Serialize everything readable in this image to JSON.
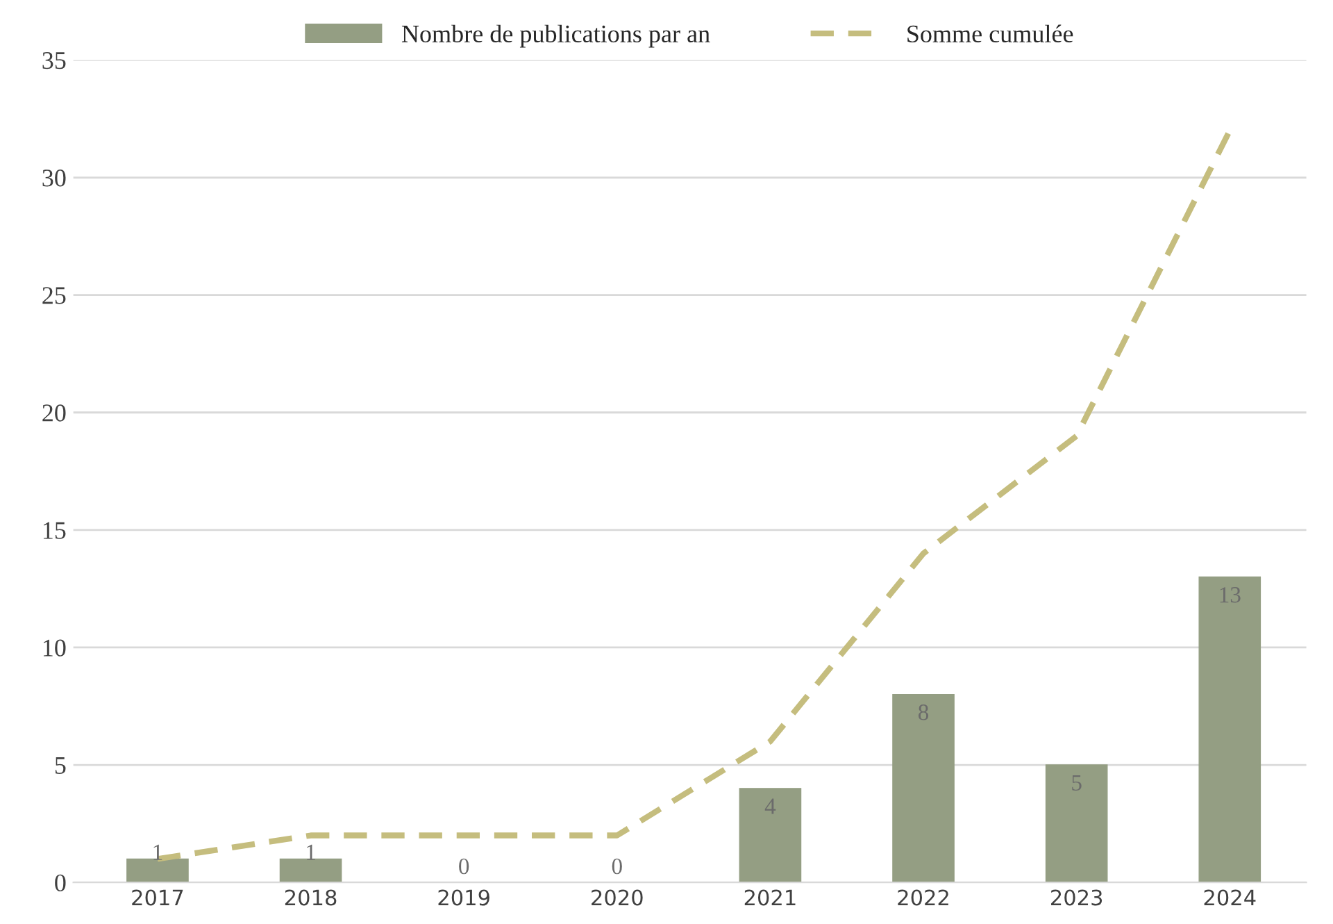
{
  "chart_data": {
    "type": "bar",
    "categories": [
      "2017",
      "2018",
      "2019",
      "2020",
      "2021",
      "2022",
      "2023",
      "2024"
    ],
    "series": [
      {
        "name": "Nombre de publications par an",
        "color": "#949e83",
        "values": [
          1,
          1,
          0,
          0,
          4,
          8,
          5,
          13
        ],
        "value_labels": [
          "1",
          "1",
          "0",
          "0",
          "4",
          "8",
          "5",
          "13"
        ]
      },
      {
        "name": "Somme cumulée",
        "type": "line",
        "color": "#c5bd7e",
        "line_style": "dashed",
        "marker": "none",
        "values": [
          1,
          2,
          2,
          2,
          6,
          14,
          19,
          32
        ]
      }
    ],
    "ylim": [
      0,
      35
    ],
    "yticks": [
      0,
      5,
      10,
      15,
      20,
      25,
      30,
      35
    ],
    "grid": "y",
    "legend": "top"
  }
}
